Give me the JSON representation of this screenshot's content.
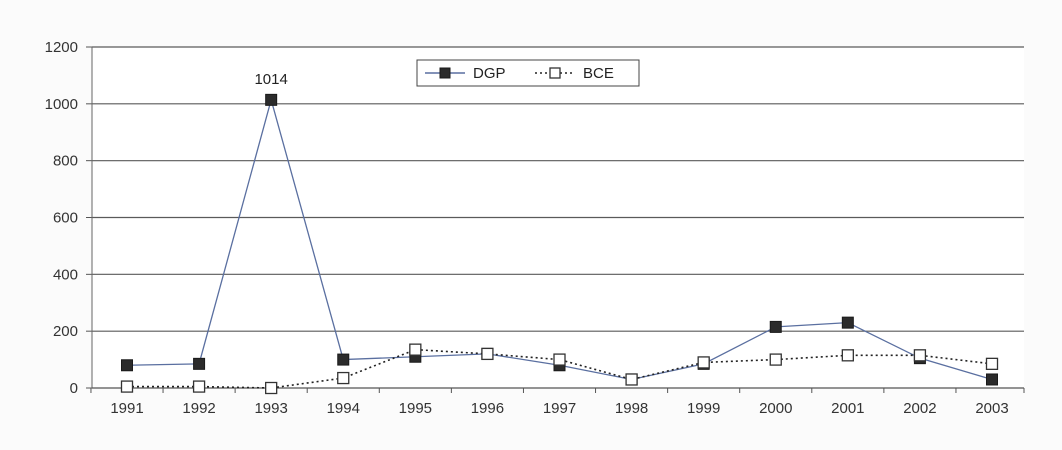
{
  "chart_data": {
    "type": "line",
    "title": "",
    "xlabel": "",
    "ylabel": "",
    "x": [
      "1991",
      "1992",
      "1993",
      "1994",
      "1995",
      "1996",
      "1997",
      "1998",
      "1999",
      "2000",
      "2001",
      "2002",
      "2003"
    ],
    "ylim": [
      0,
      1200
    ],
    "yticks": [
      0,
      200,
      400,
      600,
      800,
      1000,
      1200
    ],
    "ytick_labels": [
      "0",
      "200",
      "400",
      "600",
      "800",
      "1000",
      "1200"
    ],
    "grid": "horizontal",
    "legend_position": "top-center",
    "series": [
      {
        "name": "DGP",
        "values": [
          80,
          85,
          1014,
          100,
          110,
          120,
          80,
          30,
          85,
          215,
          230,
          105,
          30
        ],
        "line_style": "solid",
        "marker": "filled-square",
        "color": "#5a6fa0"
      },
      {
        "name": "BCE",
        "values": [
          5,
          5,
          0,
          35,
          135,
          120,
          100,
          30,
          90,
          100,
          115,
          115,
          85
        ],
        "line_style": "dotted",
        "marker": "open-square",
        "color": "#222222"
      }
    ],
    "annotations": [
      {
        "text": "1014",
        "series": "DGP",
        "x": "1993",
        "y": 1014
      }
    ]
  }
}
